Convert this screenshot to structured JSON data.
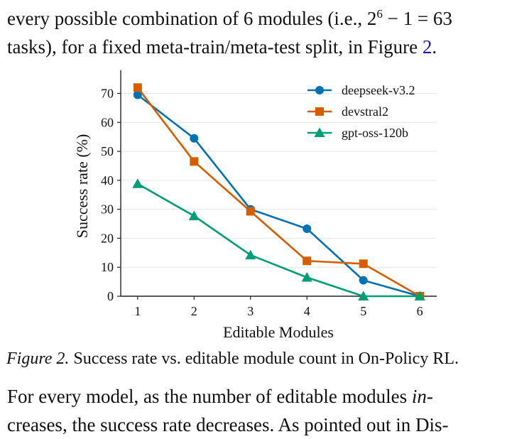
{
  "paragraph_top": {
    "line1_pre": "every possible combination of 6 modules (i.e., 2",
    "line1_sup": "6",
    "line1_post": " − 1 = 63",
    "line2_pre": "tasks), for a fixed meta-train/meta-test split, in Figure ",
    "line2_link": "2",
    "line2_post": "."
  },
  "figure": {
    "caption_label": "Figure 2.",
    "caption_text": "Success rate vs. editable module count in On-Policy RL."
  },
  "paragraph_bottom": {
    "line1_pre": "For every model, as the number of editable modules ",
    "line1_italic": "in-",
    "line2": "creases, the success rate decreases. As pointed out in Dis-"
  },
  "chart_data": {
    "type": "line",
    "xlabel": "Editable Modules",
    "ylabel": "Success rate (%)",
    "x": [
      1,
      2,
      3,
      4,
      5,
      6
    ],
    "xlim": [
      0.7,
      6.3
    ],
    "ylim": [
      0,
      76
    ],
    "yticks": [
      0,
      10,
      20,
      30,
      40,
      50,
      60,
      70
    ],
    "grid": "horizontal",
    "legend": "top-right",
    "series": [
      {
        "name": "deepseek-v3.2",
        "color": "#0072b2",
        "marker": "circle",
        "values": [
          69.5,
          54.5,
          30.0,
          23.3,
          5.5,
          0.0
        ]
      },
      {
        "name": "devstral2",
        "color": "#d55e00",
        "marker": "square",
        "values": [
          72.0,
          46.5,
          29.3,
          12.2,
          11.2,
          0.0
        ]
      },
      {
        "name": "gpt-oss-120b",
        "color": "#009e73",
        "marker": "triangle",
        "values": [
          38.8,
          27.7,
          14.2,
          6.5,
          0.0,
          0.0
        ]
      }
    ]
  }
}
